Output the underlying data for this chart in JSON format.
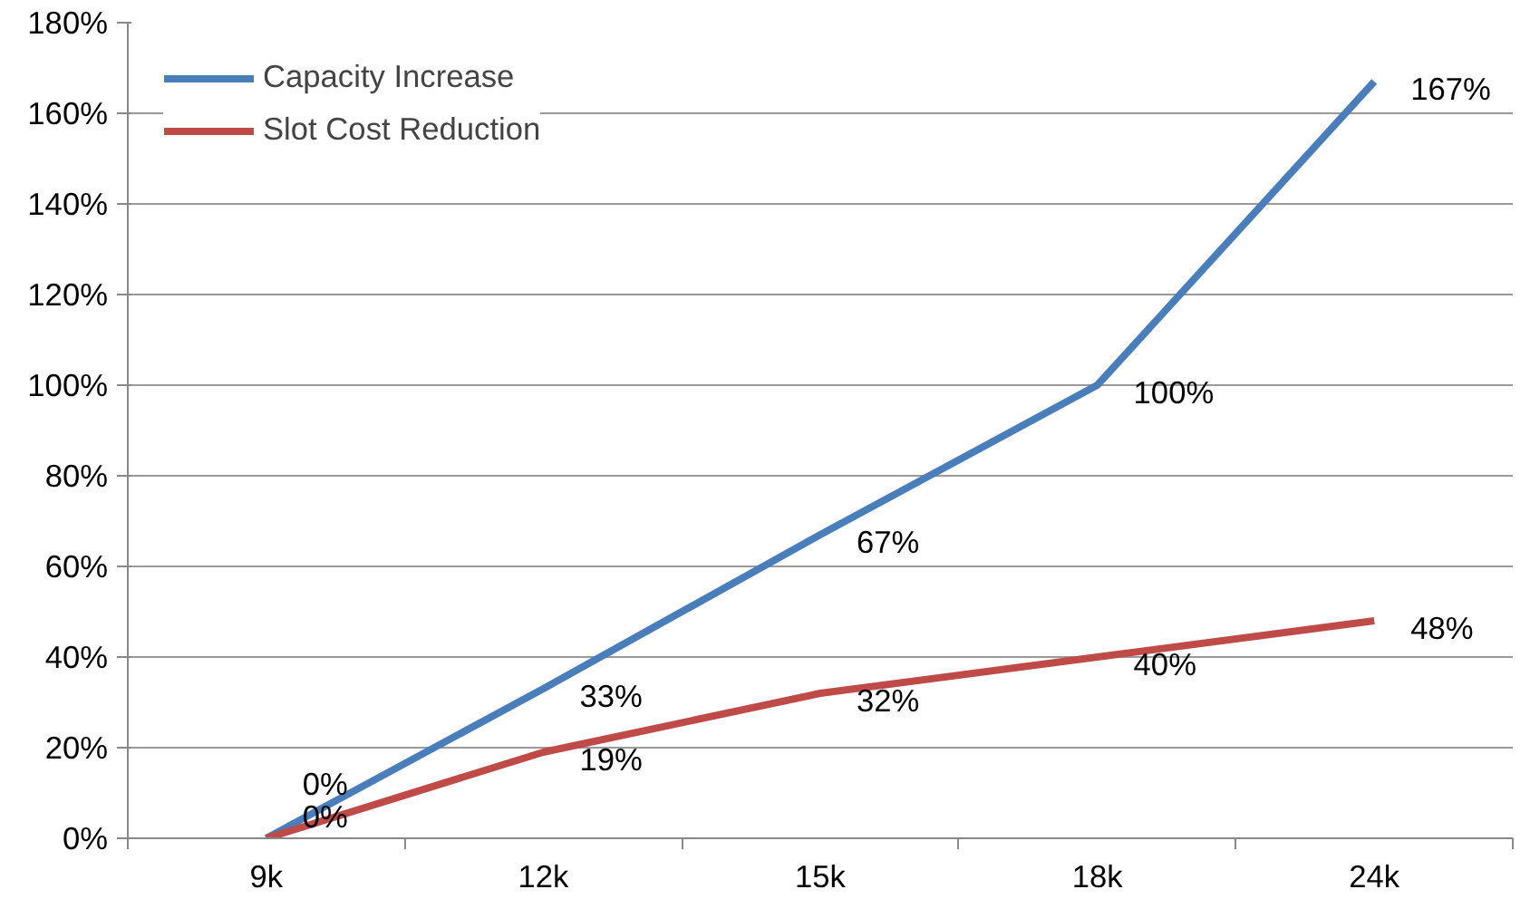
{
  "chart_data": {
    "type": "line",
    "categories": [
      "9k",
      "12k",
      "15k",
      "18k",
      "24k"
    ],
    "series": [
      {
        "name": "Capacity Increase",
        "color": "#4a7ebb",
        "values": [
          0,
          33,
          67,
          100,
          167
        ],
        "value_labels": [
          "0%",
          "33%",
          "67%",
          "100%",
          "167%"
        ]
      },
      {
        "name": "Slot Cost Reduction",
        "color": "#be4b48",
        "values": [
          0,
          19,
          32,
          40,
          48
        ],
        "value_labels": [
          "0%",
          "19%",
          "32%",
          "40%",
          "48%"
        ]
      }
    ],
    "ylim": [
      0,
      180
    ],
    "yticks": [
      {
        "value": 0,
        "label": "0%"
      },
      {
        "value": 20,
        "label": "20%"
      },
      {
        "value": 40,
        "label": "40%"
      },
      {
        "value": 60,
        "label": "60%"
      },
      {
        "value": 80,
        "label": "80%"
      },
      {
        "value": 100,
        "label": "100%"
      },
      {
        "value": 120,
        "label": "120%"
      },
      {
        "value": 140,
        "label": "140%"
      },
      {
        "value": 160,
        "label": "160%"
      },
      {
        "value": 180,
        "label": "180%"
      }
    ],
    "grid": "y",
    "legend": "top left",
    "marker": "none",
    "line_style": "solid"
  }
}
